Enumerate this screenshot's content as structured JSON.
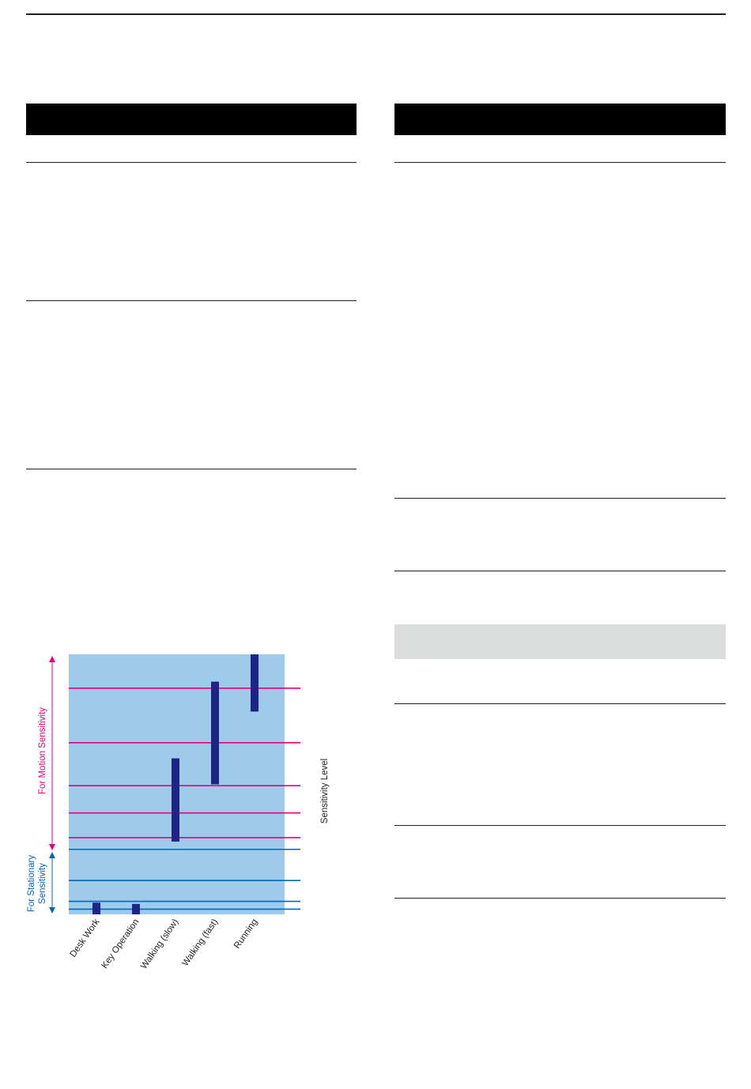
{
  "document": {
    "left_column_sections": 3,
    "right_column_sections": 5
  },
  "chart_data": {
    "type": "range-bar",
    "orientation": "vertical",
    "categories": [
      "Desk Work",
      "Key Operation",
      "Walking (slow)",
      "Walking (fast)",
      "Running"
    ],
    "series": [
      {
        "values": [
          {
            "low": 0,
            "high": 0.45
          },
          {
            "low": 0,
            "high": 0.4
          },
          {
            "low": 2.8,
            "high": 6.0
          },
          {
            "low": 5.0,
            "high": 8.95
          },
          {
            "low": 7.8,
            "high": 10.0
          }
        ]
      }
    ],
    "level_lines": {
      "stationary": [
        0.2,
        0.5,
        1.3,
        2.5
      ],
      "motion": [
        2.95,
        3.9,
        4.95,
        6.6,
        8.7
      ]
    },
    "ylim": [
      0,
      10
    ],
    "ylabel": "Sensitivity Level",
    "region_labels": {
      "motion": "For Motion Sensitivity",
      "stationary_line1": "For Stationary",
      "stationary_line2": "Sensitivity"
    },
    "colors": {
      "background": "#9fcbeb",
      "bar": "#1e2388",
      "motion": "#e4007f",
      "stationary": "#0068b7"
    }
  }
}
